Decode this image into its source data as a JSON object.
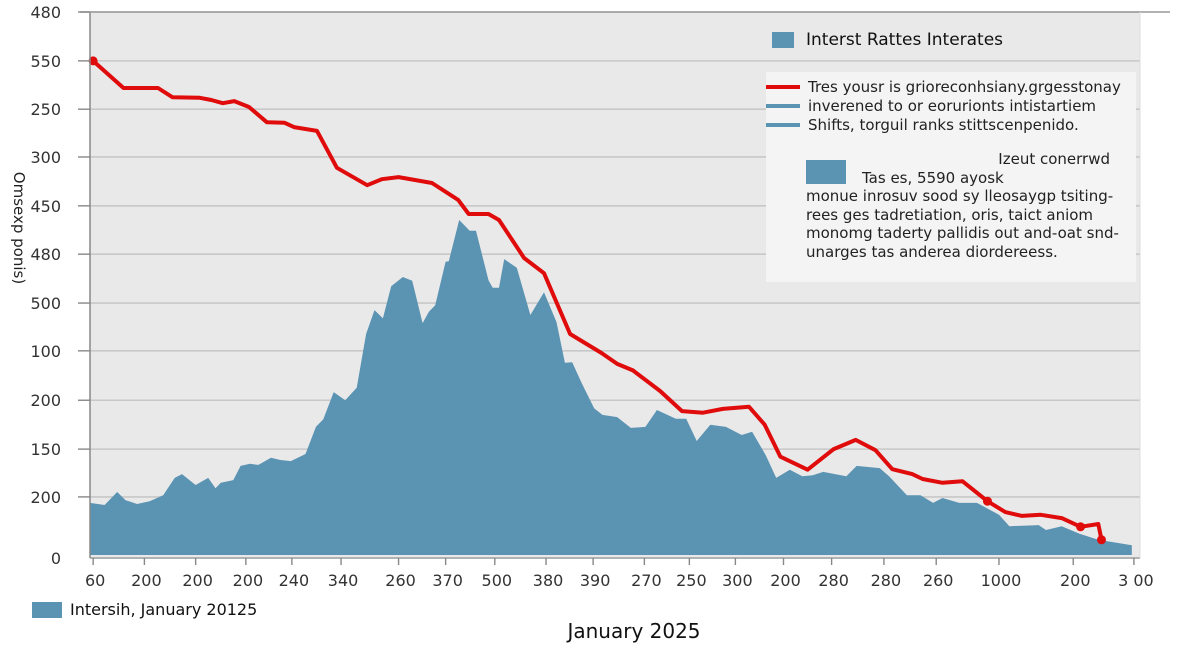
{
  "chart_data": {
    "type": "area",
    "title": "",
    "xlabel": "January 2025",
    "ylabel": "Omsexp ponis)",
    "grid": true,
    "ylim_pct": [
      0,
      100
    ],
    "y_ticks": [
      {
        "label": "480",
        "pct": 100
      },
      {
        "label": "550",
        "pct": 91
      },
      {
        "label": "250",
        "pct": 82.1
      },
      {
        "label": "300",
        "pct": 73.3
      },
      {
        "label": "450",
        "pct": 64.3
      },
      {
        "label": "480",
        "pct": 55.4
      },
      {
        "label": "500",
        "pct": 46.4
      },
      {
        "label": "100",
        "pct": 37.6
      },
      {
        "label": "200",
        "pct": 28.5
      },
      {
        "label": "150",
        "pct": 19.5
      },
      {
        "label": "200",
        "pct": 10.7
      },
      {
        "label": "0",
        "pct": 0
      }
    ],
    "x_range_pct": [
      0,
      100
    ],
    "x_ticks": [
      {
        "label": "60",
        "pct": 0.3
      },
      {
        "label": "200",
        "pct": 5.2
      },
      {
        "label": "200",
        "pct": 10.1
      },
      {
        "label": "200",
        "pct": 14.9
      },
      {
        "label": "240",
        "pct": 19.3
      },
      {
        "label": "340",
        "pct": 24.0
      },
      {
        "label": "260",
        "pct": 29.5
      },
      {
        "label": "370",
        "pct": 34.0
      },
      {
        "label": "500",
        "pct": 38.7
      },
      {
        "label": "380",
        "pct": 43.6
      },
      {
        "label": "390",
        "pct": 48.1
      },
      {
        "label": "270",
        "pct": 53.0
      },
      {
        "label": "250",
        "pct": 57.3
      },
      {
        "label": "300",
        "pct": 61.7
      },
      {
        "label": "200",
        "pct": 66.3
      },
      {
        "label": "280",
        "pct": 70.9
      },
      {
        "label": "280",
        "pct": 75.9
      },
      {
        "label": "260",
        "pct": 80.9
      },
      {
        "label": "1000",
        "pct": 86.9
      },
      {
        "label": "200",
        "pct": 94.0
      },
      {
        "label": "3 00",
        "pct": 99.8
      }
    ],
    "series": [
      {
        "name": "Intersih, January 20125",
        "kind": "area",
        "color": "#5b93b3",
        "points": [
          [
            0,
            9.6
          ],
          [
            1.4,
            9.2
          ],
          [
            2.6,
            11.6
          ],
          [
            3.4,
            10.1
          ],
          [
            4.5,
            9.4
          ],
          [
            5.7,
            9.9
          ],
          [
            7,
            11
          ],
          [
            8.1,
            14.2
          ],
          [
            8.8,
            14.9
          ],
          [
            10.1,
            12.9
          ],
          [
            11.3,
            14.2
          ],
          [
            12,
            12.3
          ],
          [
            12.5,
            13.3
          ],
          [
            13.7,
            13.8
          ],
          [
            14.4,
            16.4
          ],
          [
            15.3,
            16.8
          ],
          [
            16.1,
            16.6
          ],
          [
            17.3,
            17.9
          ],
          [
            18.2,
            17.5
          ],
          [
            19.2,
            17.3
          ],
          [
            20.6,
            18.6
          ],
          [
            21.6,
            23.6
          ],
          [
            22.3,
            25.0
          ],
          [
            23.3,
            30.0
          ],
          [
            24.4,
            28.5
          ],
          [
            25.5,
            30.8
          ],
          [
            26.4,
            40.7
          ],
          [
            27.2,
            45.1
          ],
          [
            28,
            43.6
          ],
          [
            28.8,
            49.5
          ],
          [
            29.9,
            51.2
          ],
          [
            30.8,
            50.5
          ],
          [
            31.8,
            42.7
          ],
          [
            32.4,
            44.8
          ],
          [
            33,
            46
          ],
          [
            34,
            54
          ],
          [
            34.3,
            54.1
          ],
          [
            35.3,
            61.7
          ],
          [
            36.3,
            59.7
          ],
          [
            36.9,
            59.7
          ],
          [
            38.1,
            50.6
          ],
          [
            38.5,
            49.2
          ],
          [
            39.1,
            49.2
          ],
          [
            39.6,
            54.5
          ],
          [
            40.8,
            52.9
          ],
          [
            42.1,
            44.2
          ],
          [
            43.4,
            48.4
          ],
          [
            44.6,
            42.9
          ],
          [
            45.4,
            35.4
          ],
          [
            46.1,
            35.5
          ],
          [
            47,
            31.7
          ],
          [
            48.2,
            27
          ],
          [
            49,
            25.8
          ],
          [
            50.4,
            25.4
          ],
          [
            51.7,
            23.4
          ],
          [
            53.1,
            23.6
          ],
          [
            54.2,
            26.7
          ],
          [
            56,
            25.1
          ],
          [
            57,
            25.1
          ],
          [
            58,
            21
          ],
          [
            59.3,
            24
          ],
          [
            60.8,
            23.6
          ],
          [
            62.3,
            22.1
          ],
          [
            63.3,
            22.7
          ],
          [
            64.6,
            18.4
          ],
          [
            65.6,
            14.2
          ],
          [
            66.9,
            15.7
          ],
          [
            68.1,
            14.5
          ],
          [
            69.1,
            14.7
          ],
          [
            70.1,
            15.3
          ],
          [
            72.3,
            14.5
          ],
          [
            73.3,
            16.4
          ],
          [
            75.5,
            16
          ],
          [
            76.4,
            14.5
          ],
          [
            78.1,
            11.0
          ],
          [
            79.4,
            11.0
          ],
          [
            80.6,
            9.6
          ],
          [
            81.5,
            10.5
          ],
          [
            83.1,
            9.6
          ],
          [
            84.8,
            9.6
          ],
          [
            86.9,
            7.4
          ],
          [
            87.9,
            5.3
          ],
          [
            90.7,
            5.5
          ],
          [
            91.4,
            4.6
          ],
          [
            92.9,
            5.3
          ],
          [
            94.6,
            3.9
          ],
          [
            96.4,
            2.8
          ],
          [
            99.6,
            1.8
          ]
        ]
      },
      {
        "name": "Interst Rattes Interates",
        "kind": "line",
        "color": "#e00b0b",
        "points": [
          [
            0.3,
            91
          ],
          [
            3.2,
            86
          ],
          [
            6.5,
            86
          ],
          [
            7.9,
            84.3
          ],
          [
            10.5,
            84.2
          ],
          [
            11.6,
            83.8
          ],
          [
            12.7,
            83.2
          ],
          [
            13.8,
            83.6
          ],
          [
            15.2,
            82.5
          ],
          [
            16.9,
            79.7
          ],
          [
            18.6,
            79.6
          ],
          [
            19.5,
            78.8
          ],
          [
            21.7,
            78.1
          ],
          [
            23.6,
            71.3
          ],
          [
            26.5,
            68.1
          ],
          [
            27.9,
            69.2
          ],
          [
            29.5,
            69.6
          ],
          [
            32.7,
            68.5
          ],
          [
            35.2,
            65.4
          ],
          [
            36.2,
            62.8
          ],
          [
            38.1,
            62.8
          ],
          [
            39.1,
            61.7
          ],
          [
            41.5,
            54.7
          ],
          [
            43.4,
            51.9
          ],
          [
            45.9,
            40.7
          ],
          [
            48.9,
            37.2
          ],
          [
            50.4,
            35.2
          ],
          [
            51.9,
            34
          ],
          [
            54.5,
            30.2
          ],
          [
            56.6,
            26.5
          ],
          [
            58.6,
            26.2
          ],
          [
            60.5,
            26.9
          ],
          [
            63,
            27.3
          ],
          [
            64.5,
            24
          ],
          [
            66,
            18.1
          ],
          [
            68.6,
            15.7
          ],
          [
            71.1,
            19.5
          ],
          [
            73.2,
            21.2
          ],
          [
            75.1,
            19.3
          ],
          [
            76.7,
            15.8
          ],
          [
            78.6,
            14.9
          ],
          [
            79.6,
            14
          ],
          [
            81.5,
            13.3
          ],
          [
            83.4,
            13.6
          ],
          [
            85.8,
            9.9
          ],
          [
            87.5,
            7.9
          ],
          [
            89.1,
            7.2
          ],
          [
            90.9,
            7.4
          ],
          [
            92.9,
            6.8
          ],
          [
            94.7,
            5.2
          ],
          [
            96.4,
            5.7
          ],
          [
            96.7,
            2.8
          ]
        ],
        "markers_at_index": [
          0,
          44,
          49,
          51
        ]
      }
    ],
    "legend": {
      "placement": "top-right",
      "title": "Interst Rattes Interates",
      "line_items": [
        {
          "label": "Tres yousr is grioreconhsiany.grgesstonay",
          "color": "#e00b0b"
        },
        {
          "label": "inverened to or eorurionts intistartiem",
          "color": "#5b93b3"
        },
        {
          "label": "Shifts, torguil ranks stittscenpenido.",
          "color": "#5b93b3"
        }
      ],
      "note": {
        "head": "Izeut conerrwd",
        "sub": "Tas es, 5590 ayosk",
        "lines": [
          "monue inrosuv sood sy lleosaygp tsiting-",
          "rees ges tadretiation, oris, taict aniom",
          "monomg taderty pallidis out and-oat snd-",
          "unarges tas anderea diordereess."
        ]
      }
    },
    "bottom_legend": {
      "label": "Intersih, January 20125",
      "color": "#5b93b3"
    }
  }
}
